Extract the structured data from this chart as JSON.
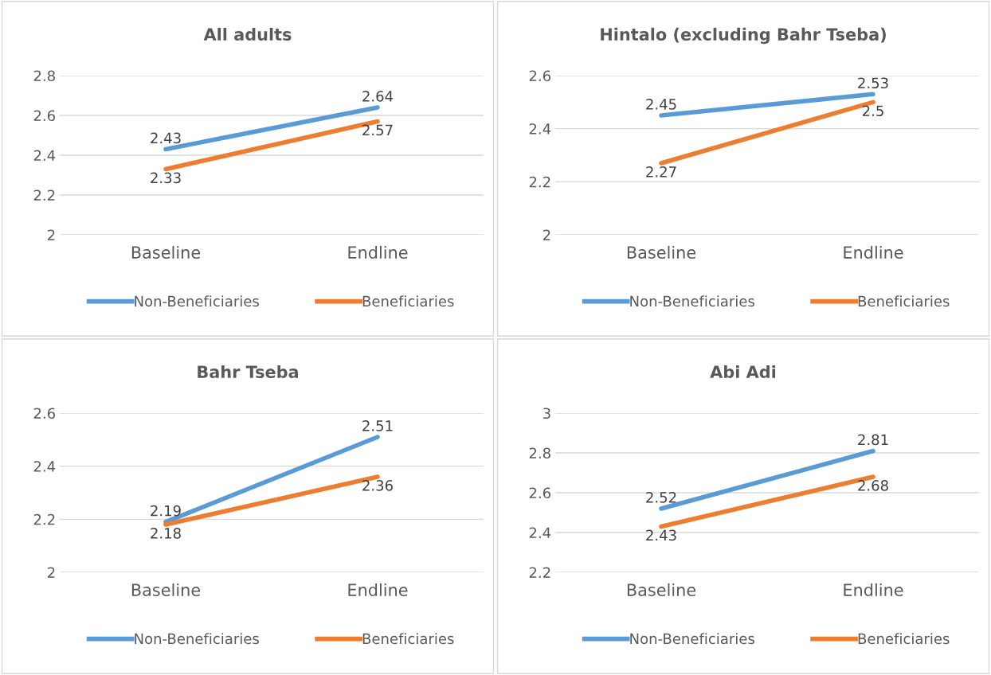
{
  "chart_data": [
    {
      "type": "line",
      "title": "All adults",
      "categories": [
        "Baseline",
        "Endline"
      ],
      "ylim": [
        2,
        2.8
      ],
      "yticks": [
        2,
        2.2,
        2.4,
        2.6,
        2.8
      ],
      "grid": "y",
      "legend": "bottom",
      "data_labels": true,
      "series": [
        {
          "name": "Non-Beneficiaries",
          "color": "#5b9bd5",
          "values": [
            2.43,
            2.64
          ]
        },
        {
          "name": "Beneficiaries",
          "color": "#ed7d31",
          "values": [
            2.33,
            2.57
          ]
        }
      ]
    },
    {
      "type": "line",
      "title": "Hintalo (excluding Bahr Tseba)",
      "categories": [
        "Baseline",
        "Endline"
      ],
      "ylim": [
        2,
        2.6
      ],
      "yticks": [
        2,
        2.2,
        2.4,
        2.6
      ],
      "grid": "y",
      "legend": "bottom",
      "data_labels": true,
      "series": [
        {
          "name": "Non-Beneficiaries",
          "color": "#5b9bd5",
          "values": [
            2.45,
            2.53
          ]
        },
        {
          "name": "Beneficiaries",
          "color": "#ed7d31",
          "values": [
            2.27,
            2.5
          ]
        }
      ]
    },
    {
      "type": "line",
      "title": "Bahr Tseba",
      "categories": [
        "Baseline",
        "Endline"
      ],
      "ylim": [
        2,
        2.6
      ],
      "yticks": [
        2,
        2.2,
        2.4,
        2.6
      ],
      "grid": "y",
      "legend": "bottom",
      "data_labels": true,
      "series": [
        {
          "name": "Non-Beneficiaries",
          "color": "#5b9bd5",
          "values": [
            2.19,
            2.51
          ]
        },
        {
          "name": "Beneficiaries",
          "color": "#ed7d31",
          "values": [
            2.18,
            2.36
          ]
        }
      ]
    },
    {
      "type": "line",
      "title": "Abi Adi",
      "categories": [
        "Baseline",
        "Endline"
      ],
      "ylim": [
        2.2,
        3
      ],
      "yticks": [
        2.2,
        2.4,
        2.6,
        2.8,
        3
      ],
      "grid": "y",
      "legend": "bottom",
      "data_labels": true,
      "series": [
        {
          "name": "Non-Beneficiaries",
          "color": "#5b9bd5",
          "values": [
            2.52,
            2.81
          ]
        },
        {
          "name": "Beneficiaries",
          "color": "#ed7d31",
          "values": [
            2.43,
            2.68
          ]
        }
      ]
    }
  ]
}
